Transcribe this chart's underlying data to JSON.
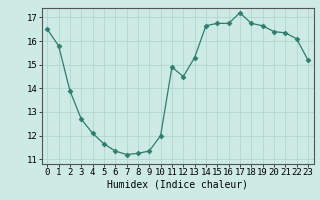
{
  "x": [
    0,
    1,
    2,
    3,
    4,
    5,
    6,
    7,
    8,
    9,
    10,
    11,
    12,
    13,
    14,
    15,
    16,
    17,
    18,
    19,
    20,
    21,
    22,
    23
  ],
  "y": [
    16.5,
    15.8,
    13.9,
    12.7,
    12.1,
    11.65,
    11.35,
    11.2,
    11.25,
    11.35,
    12.0,
    14.9,
    14.5,
    15.3,
    16.65,
    16.75,
    16.75,
    17.2,
    16.75,
    16.65,
    16.4,
    16.35,
    16.1,
    15.2
  ],
  "xlabel": "Humidex (Indice chaleur)",
  "xlim": [
    -0.5,
    23.5
  ],
  "ylim": [
    10.8,
    17.4
  ],
  "yticks": [
    11,
    12,
    13,
    14,
    15,
    16,
    17
  ],
  "xticks": [
    0,
    1,
    2,
    3,
    4,
    5,
    6,
    7,
    8,
    9,
    10,
    11,
    12,
    13,
    14,
    15,
    16,
    17,
    18,
    19,
    20,
    21,
    22,
    23
  ],
  "line_color": "#2e7d6e",
  "marker": "D",
  "marker_size": 2.5,
  "bg_color": "#cdeae4",
  "grid_color": "#b0d8d0",
  "axes_color": "#2e7d6e",
  "tick_color": "#000000",
  "xlabel_fontsize": 7,
  "tick_fontsize": 6.5
}
